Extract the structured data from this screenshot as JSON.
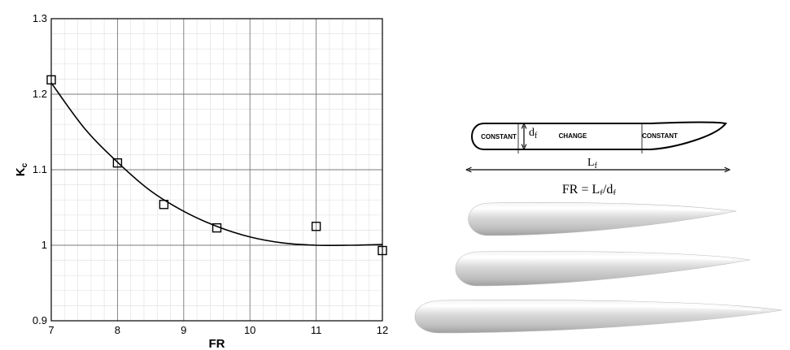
{
  "chart_data": {
    "type": "scatter",
    "title": "",
    "xlabel": "FR",
    "ylabel_main": "K",
    "ylabel_sub": "c",
    "xlim": [
      7,
      12
    ],
    "ylim": [
      0.9,
      1.3
    ],
    "xticks": [
      "7",
      "8",
      "9",
      "10",
      "11",
      "12"
    ],
    "yticks": [
      "0.9",
      "1",
      "1.1",
      "1.2",
      "1.3"
    ],
    "grid": true,
    "minor_grid": true,
    "series": [
      {
        "marker": "square-open",
        "x": [
          7,
          8,
          8.7,
          9.5,
          11,
          12
        ],
        "y": [
          1.219,
          1.109,
          1.054,
          1.023,
          1.025,
          0.993
        ]
      },
      {
        "marker": "line",
        "x": [
          7,
          7.5,
          8,
          8.5,
          9,
          9.5,
          10,
          10.5,
          11,
          11.5,
          12
        ],
        "y": [
          1.215,
          1.155,
          1.11,
          1.072,
          1.045,
          1.025,
          1.011,
          1.003,
          1.0,
          1.0,
          1.001
        ]
      }
    ]
  },
  "schematic": {
    "left_section": "CONSTANT",
    "middle_section": "CHANGE",
    "right_section": "CONSTANT",
    "diameter_main": "d",
    "diameter_sub": "f",
    "length_main": "L",
    "length_sub": "f",
    "formula_prefix": "FR = L",
    "formula_sub1": "f",
    "formula_mid": "/d",
    "formula_sub2": "f"
  }
}
